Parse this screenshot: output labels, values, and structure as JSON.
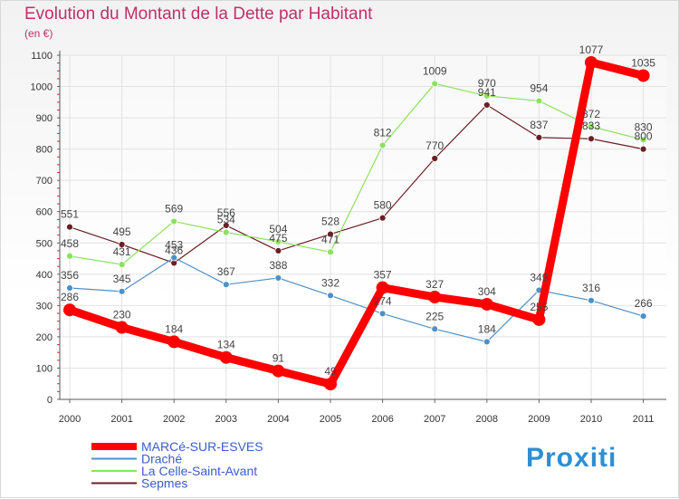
{
  "header": {
    "title": "Evolution du Montant de la Dette par Habitant",
    "subtitle": "(en €)"
  },
  "logo": {
    "text": "Proxiti"
  },
  "chart_data": {
    "type": "line",
    "title": "Evolution du Montant de la Dette par Habitant",
    "subtitle": "(en €)",
    "xlabel": "",
    "ylabel": "",
    "ylim": [
      0,
      1100
    ],
    "yticks": [
      "0",
      "100",
      "200",
      "300",
      "400",
      "500",
      "600",
      "700",
      "800",
      "900",
      "1000",
      "1100"
    ],
    "grid": true,
    "legend_position": "bottom-left",
    "x": [
      "2000",
      "2001",
      "2002",
      "2003",
      "2004",
      "2005",
      "2006",
      "2007",
      "2008",
      "2009",
      "2010",
      "2011"
    ],
    "series": [
      {
        "name": "MARCé-SUR-ESVES",
        "color": "#ff0000",
        "values": [
          286,
          230,
          184,
          134,
          91,
          49,
          357,
          327,
          304,
          255,
          1077,
          1035
        ]
      },
      {
        "name": "Draché",
        "color": "#4f90c7",
        "values": [
          356,
          345,
          453,
          367,
          388,
          332,
          274,
          225,
          184,
          349,
          316,
          266
        ]
      },
      {
        "name": "La Celle-Saint-Avant",
        "color": "#8ce25d",
        "values": [
          458,
          431,
          569,
          534,
          504,
          471,
          812,
          1009,
          970,
          954,
          872,
          830
        ]
      },
      {
        "name": "Sepmes",
        "color": "#6b1f25",
        "values": [
          551,
          495,
          436,
          556,
          475,
          528,
          580,
          770,
          941,
          837,
          833,
          800
        ]
      }
    ]
  }
}
